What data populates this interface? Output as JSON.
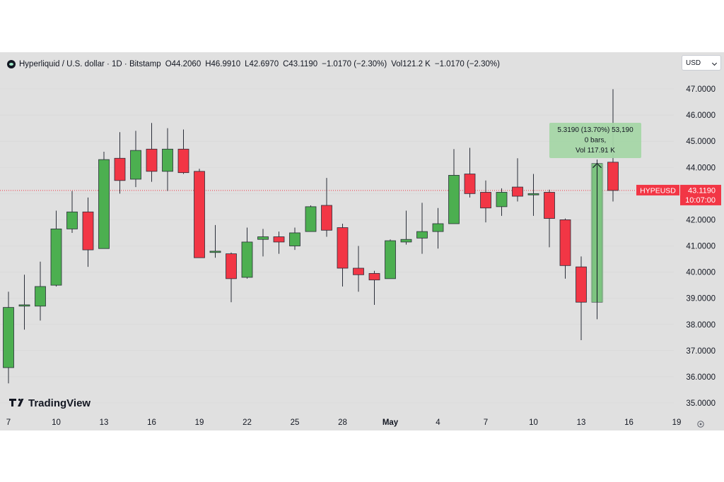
{
  "header": {
    "symbol_title": "Hyperliquid / U.S. dollar · 1D · Bitstamp",
    "open_label": "O",
    "open_value": "44.2060",
    "high_label": "H",
    "high_value": "46.9910",
    "low_label": "L",
    "low_value": "42.6970",
    "close_label": "C",
    "close_value": "43.1190",
    "change": "−1.0170 (−2.30%)",
    "vol_label": "Vol",
    "vol_value": "121.2 K",
    "vol_change": "−1.0170 (−2.30%)"
  },
  "currency": "USD",
  "branding": "TradingView",
  "colors": {
    "up": "#4caf50",
    "down": "#f23645",
    "outline": "#2a2e39",
    "measure": "#a5d6a7",
    "background": "#e0e0e0"
  },
  "price_label": {
    "symbol": "HYPEUSD",
    "price": "43.1190",
    "countdown": "10:07:00"
  },
  "measure": {
    "line1": "5.3190 (13.70%) 53,190",
    "line2": "0 bars,",
    "line3": "Vol 117.91 K"
  },
  "chart_data": {
    "type": "candlestick",
    "y_ticks": [
      "47.0000",
      "46.0000",
      "45.0000",
      "44.0000",
      "43.0000",
      "42.0000",
      "41.0000",
      "40.0000",
      "39.0000",
      "38.0000",
      "37.0000",
      "36.0000",
      "35.0000"
    ],
    "x_ticks": [
      "7",
      "10",
      "13",
      "16",
      "19",
      "22",
      "25",
      "28",
      "May",
      "4",
      "7",
      "10",
      "13",
      "16",
      "19"
    ],
    "ylim": [
      35,
      47
    ],
    "current_price": 43.119,
    "candles": [
      {
        "o": 36.35,
        "h": 39.25,
        "l": 35.75,
        "c": 38.65
      },
      {
        "o": 38.7,
        "h": 39.9,
        "l": 37.8,
        "c": 38.75
      },
      {
        "o": 38.7,
        "h": 40.4,
        "l": 38.15,
        "c": 39.45
      },
      {
        "o": 39.5,
        "h": 42.35,
        "l": 39.45,
        "c": 41.65
      },
      {
        "o": 41.65,
        "h": 43.1,
        "l": 41.5,
        "c": 42.3
      },
      {
        "o": 42.3,
        "h": 42.85,
        "l": 40.2,
        "c": 40.85
      },
      {
        "o": 40.9,
        "h": 44.6,
        "l": 40.9,
        "c": 44.3
      },
      {
        "o": 44.35,
        "h": 45.35,
        "l": 43.0,
        "c": 43.5
      },
      {
        "o": 43.55,
        "h": 45.4,
        "l": 43.25,
        "c": 44.65
      },
      {
        "o": 44.7,
        "h": 45.7,
        "l": 43.45,
        "c": 43.85
      },
      {
        "o": 43.85,
        "h": 45.5,
        "l": 43.1,
        "c": 44.7
      },
      {
        "o": 44.7,
        "h": 45.45,
        "l": 43.75,
        "c": 43.8
      },
      {
        "o": 43.85,
        "h": 43.95,
        "l": 40.55,
        "c": 40.55
      },
      {
        "o": 40.75,
        "h": 41.8,
        "l": 40.55,
        "c": 40.8
      },
      {
        "o": 40.7,
        "h": 40.75,
        "l": 38.85,
        "c": 39.75
      },
      {
        "o": 39.8,
        "h": 41.7,
        "l": 39.75,
        "c": 41.15
      },
      {
        "o": 41.25,
        "h": 41.65,
        "l": 40.6,
        "c": 41.35
      },
      {
        "o": 41.35,
        "h": 41.55,
        "l": 40.7,
        "c": 41.15
      },
      {
        "o": 41.0,
        "h": 41.7,
        "l": 40.85,
        "c": 41.5
      },
      {
        "o": 41.55,
        "h": 42.55,
        "l": 41.55,
        "c": 42.5
      },
      {
        "o": 42.55,
        "h": 43.6,
        "l": 41.35,
        "c": 41.6
      },
      {
        "o": 41.7,
        "h": 41.85,
        "l": 39.45,
        "c": 40.15
      },
      {
        "o": 40.15,
        "h": 41.0,
        "l": 39.25,
        "c": 39.9
      },
      {
        "o": 39.95,
        "h": 40.05,
        "l": 38.75,
        "c": 39.7
      },
      {
        "o": 39.75,
        "h": 41.25,
        "l": 39.75,
        "c": 41.2
      },
      {
        "o": 41.15,
        "h": 42.35,
        "l": 41.05,
        "c": 41.25
      },
      {
        "o": 41.3,
        "h": 42.65,
        "l": 40.7,
        "c": 41.55
      },
      {
        "o": 41.55,
        "h": 42.45,
        "l": 40.9,
        "c": 41.85
      },
      {
        "o": 41.85,
        "h": 44.7,
        "l": 41.85,
        "c": 43.7
      },
      {
        "o": 43.75,
        "h": 44.75,
        "l": 42.85,
        "c": 43.0
      },
      {
        "o": 43.05,
        "h": 43.5,
        "l": 41.9,
        "c": 42.45
      },
      {
        "o": 42.5,
        "h": 43.2,
        "l": 42.15,
        "c": 43.05
      },
      {
        "o": 43.25,
        "h": 44.35,
        "l": 42.7,
        "c": 42.9
      },
      {
        "o": 42.95,
        "h": 43.75,
        "l": 42.15,
        "c": 43.0
      },
      {
        "o": 43.05,
        "h": 43.15,
        "l": 40.95,
        "c": 42.05
      },
      {
        "o": 42.0,
        "h": 42.05,
        "l": 39.75,
        "c": 40.25
      },
      {
        "o": 40.2,
        "h": 40.6,
        "l": 37.4,
        "c": 38.85
      },
      {
        "o": 38.85,
        "h": 44.3,
        "l": 38.2,
        "c": 44.15
      },
      {
        "o": 44.2,
        "h": 46.99,
        "l": 42.7,
        "c": 43.12
      }
    ]
  }
}
